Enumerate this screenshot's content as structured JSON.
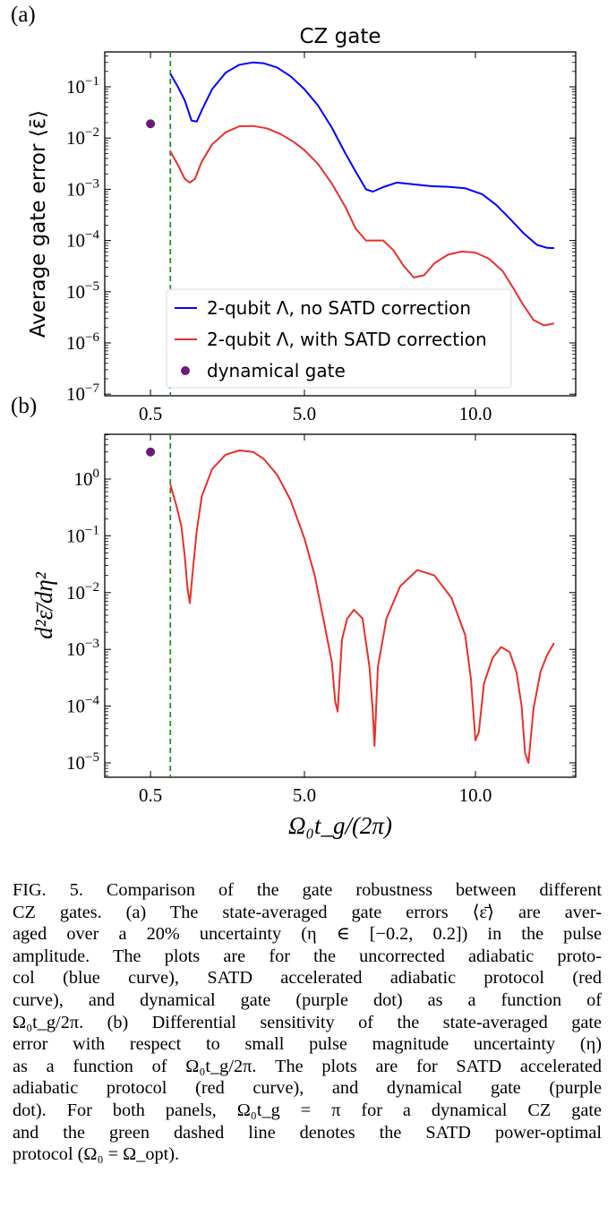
{
  "chart_data": [
    {
      "type": "line",
      "panel_label": "(a)",
      "title": "CZ gate",
      "xlabel": "",
      "ylabel": "Average gate error ⟨ε̄⟩",
      "yscale": "log",
      "xlim": [
        0.0,
        12.65
      ],
      "ylim_exp": [
        -7,
        -0.3
      ],
      "xticks": [
        {
          "v": 0.5,
          "label": "0.5"
        },
        {
          "v": 5.0,
          "label": "5.0"
        },
        {
          "v": 10.0,
          "label": "10.0"
        }
      ],
      "yticks": [
        {
          "e": -1,
          "label": "10−1"
        },
        {
          "e": -2,
          "label": "10−2"
        },
        {
          "e": -3,
          "label": "10−3"
        },
        {
          "e": -4,
          "label": "10−4"
        },
        {
          "e": -5,
          "label": "10−5"
        },
        {
          "e": -6,
          "label": "10−6"
        },
        {
          "e": -7,
          "label": "10−7"
        }
      ],
      "vline": {
        "x": 1.08,
        "color": "#2a8a2a",
        "style": "dashed",
        "meaning": "SATD power-optimal protocol"
      },
      "legend": {
        "placement": "lower-left",
        "entries": [
          {
            "label": "2-qubit Λ, no SATD correction",
            "color": "#0000ff",
            "marker": "line"
          },
          {
            "label": "2-qubit Λ, with SATD correction",
            "color": "#e8302a",
            "marker": "line"
          },
          {
            "label": "dynamical gate",
            "color": "#6f1a7a",
            "marker": "dot"
          }
        ]
      },
      "series": [
        {
          "name": "2-qubit Λ, no SATD correction",
          "color": "#0000ff",
          "x": [
            1.08,
            1.3,
            1.5,
            1.7,
            1.85,
            2.0,
            2.3,
            2.7,
            3.1,
            3.5,
            3.8,
            4.2,
            4.6,
            5.0,
            5.4,
            5.8,
            6.2,
            6.5,
            6.8,
            7.0,
            7.3,
            7.7,
            8.2,
            8.7,
            9.2,
            9.7,
            10.2,
            10.6,
            11.0,
            11.4,
            11.8,
            12.1,
            12.3
          ],
          "y": [
            0.18,
            0.1,
            0.055,
            0.022,
            0.021,
            0.035,
            0.09,
            0.19,
            0.27,
            0.3,
            0.29,
            0.24,
            0.16,
            0.09,
            0.043,
            0.016,
            0.005,
            0.0022,
            0.001,
            0.0009,
            0.0011,
            0.00135,
            0.00125,
            0.00115,
            0.00112,
            0.00105,
            0.0008,
            0.0005,
            0.00027,
            0.00014,
            8.2e-05,
            7.2e-05,
            7.1e-05
          ]
        },
        {
          "name": "2-qubit Λ, with SATD correction",
          "color": "#e8302a",
          "x": [
            1.08,
            1.3,
            1.5,
            1.65,
            1.8,
            2.0,
            2.3,
            2.7,
            3.1,
            3.5,
            3.9,
            4.3,
            4.7,
            5.0,
            5.4,
            5.8,
            6.2,
            6.5,
            6.8,
            7.0,
            7.3,
            7.6,
            7.9,
            8.2,
            8.5,
            8.8,
            9.2,
            9.6,
            10.0,
            10.4,
            10.8,
            11.1,
            11.4,
            11.7,
            12.0,
            12.3
          ],
          "y": [
            0.0055,
            0.003,
            0.0016,
            0.00135,
            0.0016,
            0.0035,
            0.0075,
            0.013,
            0.017,
            0.0172,
            0.0155,
            0.012,
            0.0083,
            0.0058,
            0.0031,
            0.0013,
            0.00045,
            0.00017,
            0.0001,
            0.0001,
            0.0001,
            6.5e-05,
            3.2e-05,
            1.9e-05,
            2.1e-05,
            3.6e-05,
            5.3e-05,
            6.1e-05,
            5.8e-05,
            4.4e-05,
            2.5e-05,
            1.2e-05,
            5.5e-06,
            2.8e-06,
            2.2e-06,
            2.4e-06
          ]
        },
        {
          "name": "dynamical gate",
          "color": "#6f1a7a",
          "type": "scatter",
          "x": [
            0.5
          ],
          "y": [
            0.019
          ]
        }
      ]
    },
    {
      "type": "line",
      "panel_label": "(b)",
      "title": "",
      "xlabel": "Ω₀t_g/(2π)",
      "ylabel": "d²ε̄/dη²",
      "yscale": "log",
      "xlim": [
        0.0,
        12.65
      ],
      "ylim_exp": [
        -5.3,
        0.8
      ],
      "xticks": [
        {
          "v": 0.5,
          "label": "0.5"
        },
        {
          "v": 5.0,
          "label": "5.0"
        },
        {
          "v": 10.0,
          "label": "10.0"
        }
      ],
      "yticks": [
        {
          "e": 0,
          "label": "100"
        },
        {
          "e": -1,
          "label": "10−1"
        },
        {
          "e": -2,
          "label": "10−2"
        },
        {
          "e": -3,
          "label": "10−3"
        },
        {
          "e": -4,
          "label": "10−4"
        },
        {
          "e": -5,
          "label": "10−5"
        }
      ],
      "vline": {
        "x": 1.08,
        "color": "#2a8a2a",
        "style": "dashed"
      },
      "series": [
        {
          "name": "SATD accelerated adiabatic protocol",
          "color": "#e8302a",
          "x": [
            1.08,
            1.25,
            1.4,
            1.5,
            1.58,
            1.65,
            1.75,
            1.85,
            2.0,
            2.3,
            2.7,
            3.1,
            3.5,
            3.8,
            4.2,
            4.6,
            5.0,
            5.3,
            5.6,
            5.8,
            5.9,
            5.97,
            6.03,
            6.1,
            6.25,
            6.45,
            6.7,
            6.9,
            7.0,
            7.05,
            7.15,
            7.4,
            7.8,
            8.3,
            8.8,
            9.3,
            9.7,
            9.87,
            10.0,
            10.1,
            10.25,
            10.5,
            10.75,
            11.0,
            11.2,
            11.35,
            11.45,
            11.55,
            11.7,
            11.9,
            12.1,
            12.3
          ],
          "y": [
            0.8,
            0.35,
            0.15,
            0.045,
            0.012,
            0.0065,
            0.03,
            0.12,
            0.5,
            1.5,
            2.7,
            3.2,
            3.0,
            2.3,
            1.2,
            0.42,
            0.09,
            0.02,
            0.0025,
            0.0006,
            0.00012,
            8e-05,
            0.0003,
            0.0015,
            0.0035,
            0.005,
            0.0035,
            0.0005,
            8e-05,
            2e-05,
            0.0005,
            0.0035,
            0.013,
            0.025,
            0.02,
            0.008,
            0.0018,
            0.0003,
            2.5e-05,
            3.5e-05,
            0.00025,
            0.0007,
            0.0011,
            0.0009,
            0.0004,
            0.0001,
            1.5e-05,
            1e-05,
            9e-05,
            0.0004,
            0.0008,
            0.0013
          ]
        },
        {
          "name": "dynamical gate",
          "color": "#6f1a7a",
          "type": "scatter",
          "x": [
            0.5
          ],
          "y": [
            3.0
          ]
        }
      ]
    }
  ],
  "caption": {
    "lines": [
      "FIG. 5. Comparison of the gate robustness between different",
      "CZ gates.  (a) The state-averaged gate errors ⟨ε̄⟩ are aver-",
      "aged over a 20% uncertainty (η ∈ [−0.2, 0.2]) in the pulse",
      "amplitude. The plots are for the uncorrected adiabatic proto-",
      "col (blue curve), SATD accelerated adiabatic protocol (red",
      "curve), and dynamical gate (purple dot) as a function of",
      "Ω₀t_g/2π. (b) Differential sensitivity of the state-averaged gate",
      "error with respect to small pulse magnitude uncertainty (η)",
      "as a function of Ω₀t_g/2π. The plots are for SATD accelerated",
      "adiabatic protocol (red curve), and dynamical gate (purple",
      "dot).  For both panels, Ω₀t_g = π for a dynamical CZ gate",
      "and the green dashed line denotes the SATD power-optimal",
      "protocol (Ω₀ = Ω_opt)."
    ]
  }
}
